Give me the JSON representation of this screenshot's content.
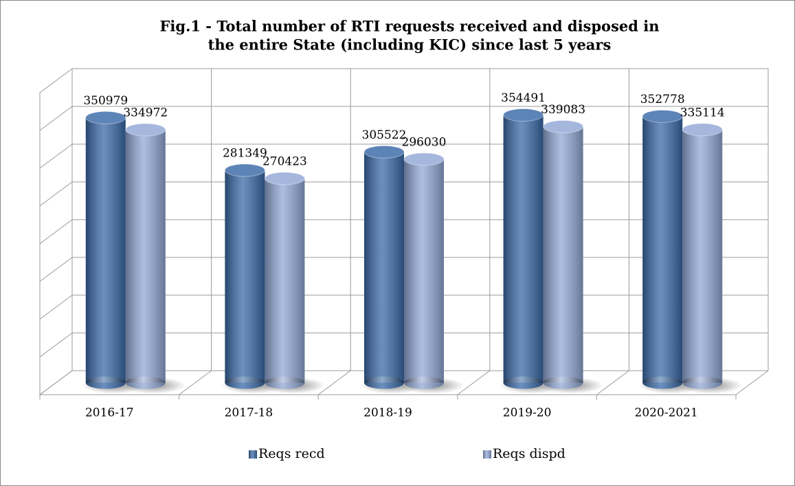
{
  "chart_data": {
    "type": "bar3d",
    "title": [
      "Fig.1 - Total number of RTI requests received and disposed in",
      "the entire State (including KIC) since last 5 years"
    ],
    "categories": [
      "2016-17",
      "2017-18",
      "2018-19",
      "2019-20",
      "2020-2021"
    ],
    "series": [
      {
        "name": "Reqs recd",
        "color": "#3a6aa8",
        "values": [
          350979,
          281349,
          305522,
          354491,
          352778
        ]
      },
      {
        "name": "Reqs dispd",
        "color": "#92a8d6",
        "values": [
          334972,
          270423,
          296030,
          339083,
          335114
        ]
      }
    ],
    "ylim": [
      0,
      400000
    ],
    "yticks": [
      0,
      50000,
      100000,
      150000,
      200000,
      250000,
      300000,
      350000,
      400000
    ],
    "grid": true,
    "legend": "bottom"
  }
}
